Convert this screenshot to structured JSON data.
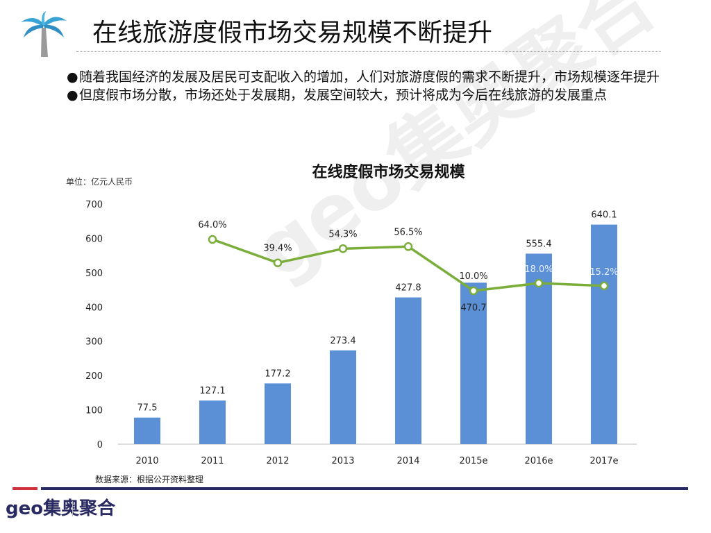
{
  "header": {
    "title": "在线旅游度假市场交易规模不断提升"
  },
  "bullets": [
    "随着我国经济的发展及居民可支配收入的增加，人们对旅游度假的需求不断提升，市场规模逐年提升",
    "但度假市场分散，市场还处于发展期，发展空间较大，预计将成为今后在线旅游的发展重点"
  ],
  "footer": {
    "source": "数据来源：根据公开资料整理",
    "logo": "geo集奥聚合",
    "watermark": "geo集奥聚合"
  },
  "colors": {
    "bar": "#5b8fd6",
    "line": "#7aad3a",
    "navy": "#2a2a63",
    "red": "#d2323c"
  },
  "chart_data": {
    "type": "bar+line",
    "title": "在线度假市场交易规模",
    "unit": "单位：亿元人民币",
    "categories": [
      "2010",
      "2011",
      "2012",
      "2013",
      "2014",
      "2015e",
      "2016e",
      "2017e"
    ],
    "ylim": [
      0,
      700
    ],
    "yticks": [
      "0",
      "100",
      "200",
      "300",
      "400",
      "500",
      "600",
      "700"
    ],
    "grid": false,
    "series": [
      {
        "type": "bar",
        "values": [
          77.5,
          127.1,
          177.2,
          273.4,
          427.8,
          470.7,
          555.4,
          640.1
        ],
        "labels": [
          "77.5",
          "127.1",
          "177.2",
          "273.4",
          "427.8",
          "470.7",
          "555.4",
          "640.1"
        ]
      },
      {
        "type": "line",
        "axis": "secondary-hidden",
        "values": [
          null,
          64.0,
          39.4,
          54.3,
          56.5,
          10.0,
          18.0,
          15.2
        ],
        "labels": [
          "",
          "64.0%",
          "39.4%",
          "54.3%",
          "56.5%",
          "10.0%",
          "18.0%",
          "15.2%"
        ]
      }
    ]
  }
}
